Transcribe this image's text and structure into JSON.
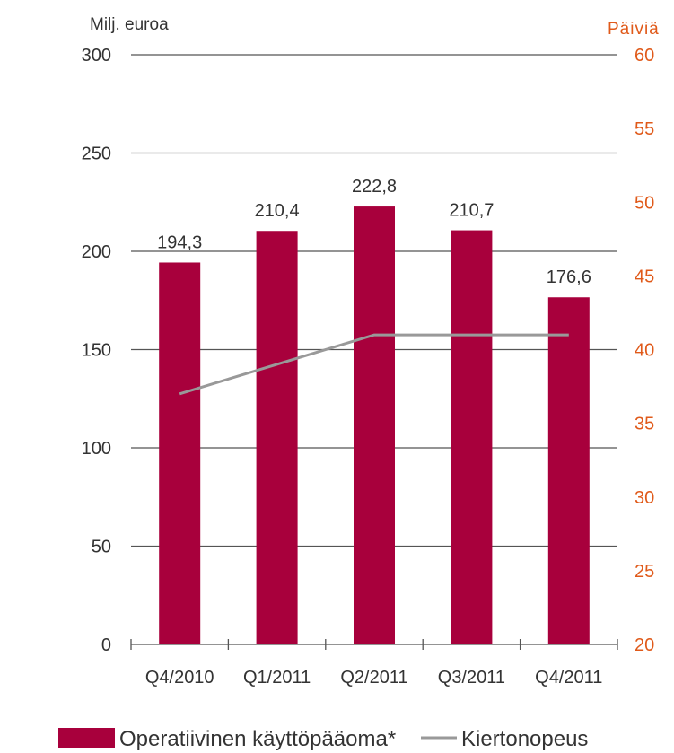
{
  "chart_data": {
    "type": "bar",
    "categories": [
      "Q4/2010",
      "Q1/2011",
      "Q2/2011",
      "Q3/2011",
      "Q4/2011"
    ],
    "series": [
      {
        "name": "Operatiivinen käyttöpääoma*",
        "type": "bar",
        "axis": "left",
        "color": "#a8003c",
        "values": [
          194.3,
          210.4,
          222.8,
          210.7,
          176.6
        ],
        "labels": [
          "194,3",
          "210,4",
          "222,8",
          "210,7",
          "176,6"
        ]
      },
      {
        "name": "Kiertonopeus",
        "type": "line",
        "axis": "right",
        "color": "#999999",
        "values": [
          37,
          39,
          41,
          41,
          41
        ]
      }
    ],
    "left_axis": {
      "unit": "Milj. euroa",
      "ylim": [
        0,
        300
      ],
      "ticks": [
        "0",
        "50",
        "100",
        "150",
        "200",
        "250",
        "300"
      ]
    },
    "right_axis": {
      "unit": "Päiviä",
      "ylim": [
        20,
        60
      ],
      "ticks": [
        "20",
        "25",
        "30",
        "35",
        "40",
        "45",
        "50",
        "55",
        "60"
      ],
      "color": "#e05a1a"
    },
    "grid": true,
    "legend_position": "bottom"
  }
}
